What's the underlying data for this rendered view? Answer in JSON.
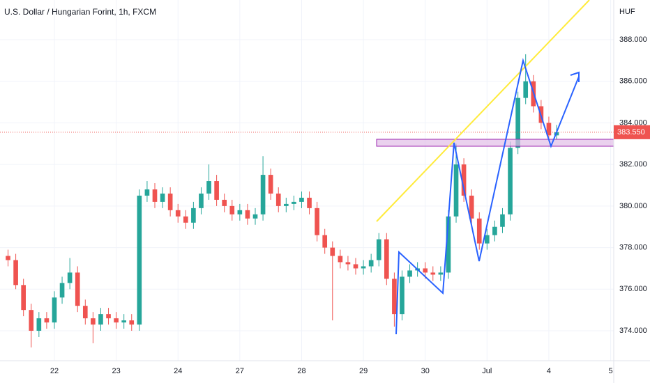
{
  "chart_data": {
    "type": "candlestick",
    "title": "U.S. Dollar / Hungarian Forint, 1h, FXCM",
    "y_axis_label": "HUF",
    "up_color": "#26a69a",
    "down_color": "#ef5350",
    "xlim": [
      0.12,
      10.05
    ],
    "ylim": [
      372.56,
      389.91
    ],
    "xticks": [
      {
        "value": 1,
        "label": "22"
      },
      {
        "value": 2,
        "label": "23"
      },
      {
        "value": 3,
        "label": "24"
      },
      {
        "value": 4,
        "label": "27"
      },
      {
        "value": 5,
        "label": "28"
      },
      {
        "value": 6,
        "label": "29"
      },
      {
        "value": 7,
        "label": "30"
      },
      {
        "value": 8,
        "label": "Jul"
      },
      {
        "value": 9,
        "label": "4"
      },
      {
        "value": 10,
        "label": "5"
      }
    ],
    "yticks": [
      {
        "value": 374,
        "label": "374.000"
      },
      {
        "value": 376,
        "label": "376.000"
      },
      {
        "value": 378,
        "label": "378.000"
      },
      {
        "value": 380,
        "label": "380.000"
      },
      {
        "value": 382,
        "label": "382.000"
      },
      {
        "value": 384,
        "label": "384.000"
      },
      {
        "value": 386,
        "label": "386.000"
      },
      {
        "value": 388,
        "label": "388.000"
      }
    ],
    "last_price": {
      "value": 383.55,
      "label": "383.550",
      "color": "#ef5350"
    },
    "x": [
      0.25,
      0.375,
      0.5,
      0.625,
      0.75,
      0.875,
      1.0,
      1.125,
      1.25,
      1.375,
      1.5,
      1.625,
      1.75,
      1.875,
      2.0,
      2.125,
      2.25,
      2.375,
      2.5,
      2.625,
      2.75,
      2.875,
      3.0,
      3.125,
      3.25,
      3.375,
      3.5,
      3.625,
      3.75,
      3.875,
      4.0,
      4.125,
      4.25,
      4.375,
      4.5,
      4.625,
      4.75,
      4.875,
      5.0,
      5.125,
      5.25,
      5.375,
      5.5,
      5.625,
      5.75,
      5.875,
      6.0,
      6.125,
      6.25,
      6.375,
      6.5,
      6.625,
      6.75,
      6.875,
      7.0,
      7.125,
      7.25,
      7.375,
      7.5,
      7.625,
      7.75,
      7.875,
      8.0,
      8.125,
      8.25,
      8.375,
      8.5,
      8.625,
      8.75,
      8.875,
      9.0,
      9.125
    ],
    "open": [
      377.6,
      377.4,
      376.2,
      375.0,
      374.0,
      374.6,
      374.4,
      375.6,
      376.3,
      376.8,
      375.2,
      374.6,
      374.3,
      374.8,
      374.6,
      374.4,
      374.5,
      374.3,
      380.5,
      380.8,
      380.2,
      380.6,
      379.8,
      379.5,
      379.2,
      379.9,
      380.6,
      381.2,
      380.3,
      380.0,
      379.6,
      379.8,
      379.4,
      379.6,
      381.5,
      380.6,
      380.0,
      380.1,
      380.2,
      380.4,
      379.9,
      378.6,
      378.0,
      377.6,
      377.3,
      377.2,
      377.0,
      377.1,
      377.4,
      378.4,
      376.5,
      374.8,
      376.6,
      376.9,
      377.0,
      376.8,
      376.7,
      376.8,
      379.5,
      382.0,
      380.5,
      379.4,
      378.2,
      378.6,
      379.0,
      379.6,
      382.8,
      385.2,
      386.0,
      384.8,
      384.0,
      383.4
    ],
    "high": [
      377.9,
      377.7,
      376.5,
      375.3,
      374.9,
      374.9,
      375.9,
      376.6,
      377.5,
      377.1,
      375.5,
      374.9,
      375.1,
      375.1,
      374.9,
      374.8,
      374.8,
      380.8,
      381.2,
      381.1,
      380.9,
      380.9,
      380.1,
      379.8,
      380.2,
      380.9,
      382.0,
      381.5,
      380.6,
      380.3,
      380.1,
      380.1,
      379.9,
      382.4,
      381.8,
      380.9,
      380.4,
      380.5,
      380.7,
      380.7,
      380.2,
      378.9,
      378.3,
      377.9,
      377.6,
      377.5,
      377.4,
      377.7,
      378.7,
      378.7,
      376.8,
      376.9,
      377.2,
      377.3,
      377.3,
      377.1,
      377.1,
      379.8,
      383.0,
      382.3,
      380.8,
      379.7,
      378.9,
      379.3,
      379.9,
      383.1,
      385.5,
      387.3,
      386.3,
      385.1,
      384.3,
      383.9
    ],
    "low": [
      377.1,
      376.0,
      374.7,
      373.2,
      373.7,
      374.1,
      374.1,
      375.3,
      376.0,
      374.9,
      374.3,
      373.4,
      374.0,
      374.3,
      374.1,
      374.1,
      374.0,
      374.0,
      380.2,
      379.9,
      379.9,
      379.5,
      379.2,
      378.9,
      378.9,
      379.6,
      380.3,
      380.0,
      379.7,
      379.3,
      379.3,
      379.1,
      379.1,
      379.3,
      380.3,
      379.7,
      379.7,
      379.8,
      379.9,
      379.6,
      378.3,
      377.7,
      374.5,
      377.0,
      376.9,
      376.7,
      376.7,
      376.8,
      377.1,
      376.2,
      374.2,
      374.5,
      376.3,
      376.6,
      376.5,
      376.4,
      376.4,
      376.5,
      379.2,
      380.2,
      379.1,
      377.9,
      377.9,
      378.3,
      378.7,
      379.3,
      382.5,
      384.9,
      384.5,
      383.7,
      383.1,
      383.2
    ],
    "close": [
      377.4,
      376.2,
      375.0,
      374.0,
      374.6,
      374.4,
      375.6,
      376.3,
      376.8,
      375.2,
      374.6,
      374.3,
      374.8,
      374.6,
      374.4,
      374.5,
      374.3,
      380.5,
      380.8,
      380.2,
      380.6,
      379.8,
      379.5,
      379.2,
      379.9,
      380.6,
      381.2,
      380.3,
      380.0,
      379.6,
      379.8,
      379.4,
      379.6,
      381.5,
      380.6,
      380.0,
      380.1,
      380.2,
      380.4,
      379.9,
      378.6,
      378.0,
      377.6,
      377.3,
      377.2,
      377.0,
      377.1,
      377.4,
      378.4,
      376.5,
      374.8,
      376.6,
      376.9,
      377.0,
      376.8,
      376.7,
      376.8,
      379.5,
      382.0,
      380.5,
      379.4,
      378.2,
      378.6,
      379.0,
      379.6,
      382.8,
      385.2,
      386.0,
      384.8,
      384.0,
      383.4,
      383.55
    ]
  }
}
